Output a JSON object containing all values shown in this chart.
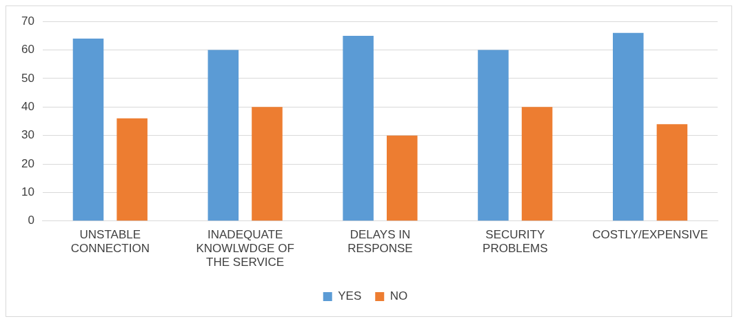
{
  "chart_data": {
    "type": "bar",
    "categories": [
      "UNSTABLE CONNECTION",
      "INADEQUATE KNOWLWDGE OF THE SERVICE",
      "DELAYS IN RESPONSE",
      "SECURITY PROBLEMS",
      "COSTLY/EXPENSIVE"
    ],
    "series": [
      {
        "name": "YES",
        "color": "#5b9bd5",
        "values": [
          64,
          60,
          65,
          60,
          66
        ]
      },
      {
        "name": "NO",
        "color": "#ed7d31",
        "values": [
          36,
          40,
          30,
          40,
          34
        ]
      }
    ],
    "ylim": [
      0,
      70
    ],
    "yticks": [
      0,
      10,
      20,
      30,
      40,
      50,
      60,
      70
    ],
    "grid": "y",
    "legend": "bottom"
  }
}
